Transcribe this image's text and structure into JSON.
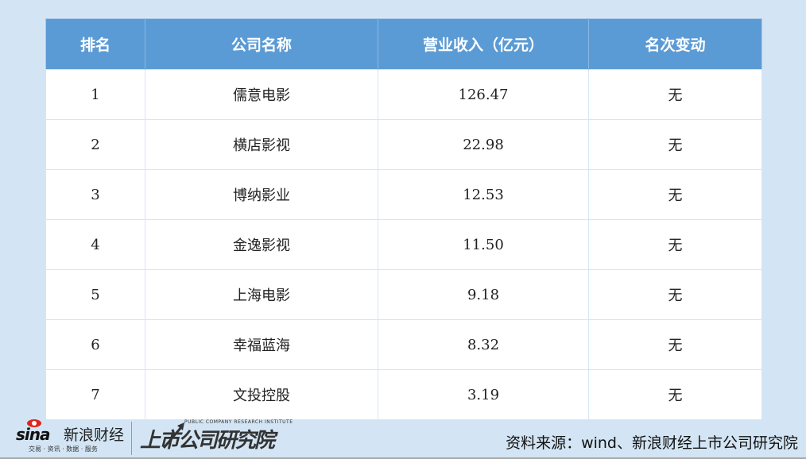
{
  "table": {
    "headers": [
      "排名",
      "公司名称",
      "营业收入（亿元）",
      "名次变动"
    ],
    "rows": [
      [
        "1",
        "儒意电影",
        "126.47",
        "无"
      ],
      [
        "2",
        "横店影视",
        "22.98",
        "无"
      ],
      [
        "3",
        "博纳影业",
        "12.53",
        "无"
      ],
      [
        "4",
        "金逸影视",
        "11.50",
        "无"
      ],
      [
        "5",
        "上海电影",
        "9.18",
        "无"
      ],
      [
        "6",
        "幸福蓝海",
        "8.32",
        "无"
      ],
      [
        "7",
        "文投控股",
        "3.19",
        "无"
      ]
    ]
  },
  "footer": {
    "source": "资料来源：wind、新浪财经上市公司研究院",
    "sina_logo": {
      "word": "sina",
      "name": "新浪财经",
      "tagline": "交易 · 资讯 · 数据 · 服务"
    },
    "institute_logo": {
      "en": "PUBLIC COMPANY RESEARCH INSTITUTE",
      "cn": "上市公司研究院"
    }
  },
  "colors": {
    "header_bg": "#5b9bd5",
    "page_bg": "#d3e5f4",
    "sina_red": "#e0261b"
  }
}
